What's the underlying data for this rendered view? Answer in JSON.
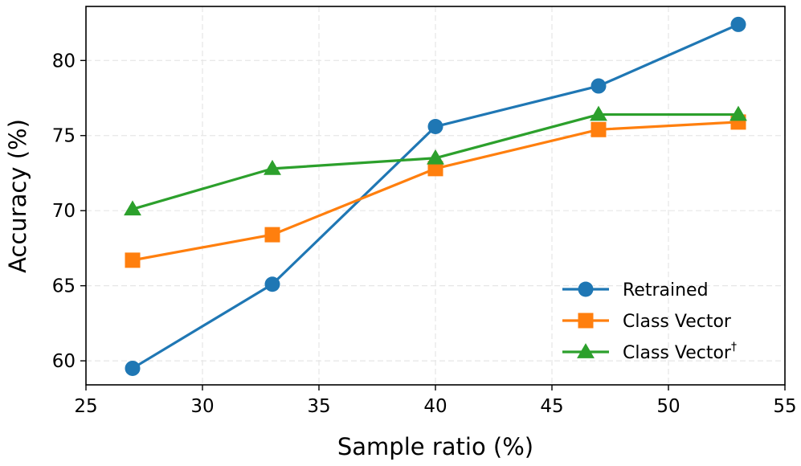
{
  "chart_data": {
    "type": "line",
    "title": "",
    "xlabel": "Sample ratio (%)",
    "ylabel": "Accuracy (%)",
    "xlim": [
      25,
      55
    ],
    "ylim": [
      58.4,
      83.6
    ],
    "xticks": [
      25,
      30,
      35,
      40,
      45,
      50,
      55
    ],
    "yticks": [
      60,
      65,
      70,
      75,
      80
    ],
    "grid": true,
    "legend_position": "lower-right",
    "x": [
      27,
      33,
      40,
      47,
      53
    ],
    "series": [
      {
        "name": "Retrained",
        "label_main": "Retrained",
        "label_sup": "",
        "color": "#1f77b4",
        "marker": "circle",
        "values": [
          59.5,
          65.1,
          75.6,
          78.3,
          82.4
        ]
      },
      {
        "name": "Class Vector",
        "label_main": "Class Vector",
        "label_sup": "",
        "color": "#ff7f0e",
        "marker": "square",
        "values": [
          66.7,
          68.4,
          72.8,
          75.4,
          75.9
        ]
      },
      {
        "name": "Class Vector†",
        "label_main": "Class Vector",
        "label_sup": "†",
        "color": "#2ca02c",
        "marker": "triangle",
        "values": [
          70.1,
          72.8,
          73.5,
          76.4,
          76.4
        ]
      }
    ]
  }
}
